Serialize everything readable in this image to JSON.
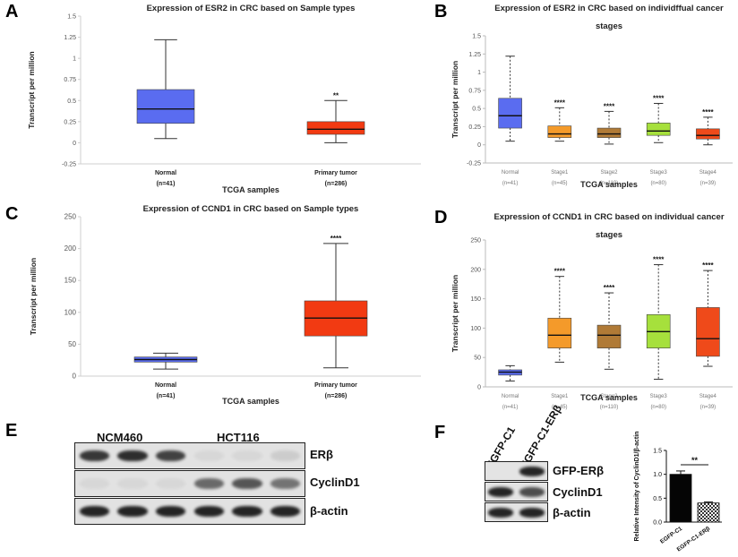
{
  "panel_labels": [
    "A",
    "B",
    "C",
    "D",
    "E",
    "F"
  ],
  "colors": {
    "normal_blue": "#5a6cf0",
    "tumor_red": "#f23a12",
    "stage1_orange": "#f49a2a",
    "stage2_brown": "#b07a36",
    "stage3_green": "#a6e03c",
    "stage4_red": "#ef4a1a"
  },
  "chart_data": [
    {
      "id": "A",
      "type": "box",
      "title": "Expression of ESR2 in CRC based on Sample types",
      "xlabel": "TCGA samples",
      "ylabel": "Transcript per million",
      "ylim": [
        -0.25,
        1.5
      ],
      "yticks": [
        "-0.25",
        "0",
        "0.25",
        "0.5",
        "0.75",
        "1",
        "1.25",
        "1.5"
      ],
      "categories": [
        "Normal",
        "Primary tumor"
      ],
      "counts": [
        "(n=41)",
        "(n=286)"
      ],
      "boxes": [
        {
          "min": 0.05,
          "q1": 0.23,
          "median": 0.4,
          "q3": 0.63,
          "max": 1.22,
          "color": "#5a6cf0",
          "sig": ""
        },
        {
          "min": 0.0,
          "q1": 0.1,
          "median": 0.16,
          "q3": 0.25,
          "max": 0.5,
          "color": "#f23a12",
          "sig": "**"
        }
      ]
    },
    {
      "id": "B",
      "type": "box",
      "title": "Expression of ESR2 in CRC based on individffual cancer",
      "title2": "stages",
      "xlabel": "TCGA samples",
      "ylabel": "Transcript per million",
      "ylim": [
        -0.25,
        1.5
      ],
      "yticks": [
        "-0.25",
        "0",
        "0.25",
        "0.5",
        "0.75",
        "1",
        "1.25",
        "1.5"
      ],
      "categories": [
        "Normal",
        "Stage1",
        "Stage2",
        "Stage3",
        "Stage4"
      ],
      "counts": [
        "(n=41)",
        "(n=45)",
        "(n=110)",
        "(n=80)",
        "(n=39)"
      ],
      "boxes": [
        {
          "min": 0.05,
          "q1": 0.23,
          "median": 0.4,
          "q3": 0.64,
          "max": 1.22,
          "color": "#5a6cf0",
          "sig": ""
        },
        {
          "min": 0.05,
          "q1": 0.1,
          "median": 0.15,
          "q3": 0.26,
          "max": 0.51,
          "color": "#f49a2a",
          "sig": "****"
        },
        {
          "min": 0.01,
          "q1": 0.1,
          "median": 0.15,
          "q3": 0.23,
          "max": 0.46,
          "color": "#b07a36",
          "sig": "****"
        },
        {
          "min": 0.03,
          "q1": 0.13,
          "median": 0.19,
          "q3": 0.3,
          "max": 0.57,
          "color": "#a6e03c",
          "sig": "****"
        },
        {
          "min": 0.0,
          "q1": 0.08,
          "median": 0.13,
          "q3": 0.22,
          "max": 0.38,
          "color": "#ef4a1a",
          "sig": "****"
        }
      ]
    },
    {
      "id": "C",
      "type": "box",
      "title": "Expression of CCND1 in CRC based on Sample types",
      "xlabel": "TCGA samples",
      "ylabel": "Transcript per million",
      "ylim": [
        0,
        250
      ],
      "yticks": [
        "0",
        "50",
        "100",
        "150",
        "200",
        "250"
      ],
      "categories": [
        "Normal",
        "Primary tumor"
      ],
      "counts": [
        "(n=41)",
        "(n=286)"
      ],
      "boxes": [
        {
          "min": 11,
          "q1": 22,
          "median": 26,
          "q3": 30,
          "max": 36,
          "color": "#5a6cf0",
          "sig": ""
        },
        {
          "min": 13,
          "q1": 63,
          "median": 91,
          "q3": 118,
          "max": 208,
          "color": "#f23a12",
          "sig": "****"
        }
      ]
    },
    {
      "id": "D",
      "type": "box",
      "title": "Expression of CCND1 in CRC based on individual cancer",
      "title2": "stages",
      "xlabel": "TCGA samples",
      "ylabel": "Transcript per million",
      "ylim": [
        0,
        250
      ],
      "yticks": [
        "0",
        "50",
        "100",
        "150",
        "200",
        "250"
      ],
      "categories": [
        "Normal",
        "Stage1",
        "Stage2",
        "Stage3",
        "Stage4"
      ],
      "counts": [
        "(n=41)",
        "(n=45)",
        "(n=110)",
        "(n=80)",
        "(n=39)"
      ],
      "boxes": [
        {
          "min": 10,
          "q1": 20,
          "median": 25,
          "q3": 29,
          "max": 36,
          "color": "#5a6cf0",
          "sig": ""
        },
        {
          "min": 42,
          "q1": 66,
          "median": 88,
          "q3": 117,
          "max": 188,
          "color": "#f49a2a",
          "sig": "****"
        },
        {
          "min": 30,
          "q1": 66,
          "median": 88,
          "q3": 105,
          "max": 160,
          "color": "#b07a36",
          "sig": "****"
        },
        {
          "min": 13,
          "q1": 66,
          "median": 94,
          "q3": 123,
          "max": 208,
          "color": "#a6e03c",
          "sig": "****"
        },
        {
          "min": 35,
          "q1": 52,
          "median": 82,
          "q3": 135,
          "max": 198,
          "color": "#ef4a1a",
          "sig": "****"
        }
      ]
    },
    {
      "id": "F-bar",
      "type": "bar",
      "ylabel": "Relative Intensity of CyclinD1/β-actin",
      "ylim": [
        0,
        1.5
      ],
      "yticks": [
        "0.0",
        "0.5",
        "1.0",
        "1.5"
      ],
      "categories": [
        "EGFP-C1",
        "EGFP-C1-ERβ"
      ],
      "values": [
        1.0,
        0.4
      ],
      "errors": [
        0.07,
        0.02
      ],
      "sig": "**"
    }
  ],
  "blot_E": {
    "groups": [
      "NCM460",
      "HCT116"
    ],
    "rows": [
      {
        "label": "ERβ",
        "intensities": [
          0.85,
          0.9,
          0.8,
          0.05,
          0.05,
          0.1
        ]
      },
      {
        "label": "CyclinD1",
        "intensities": [
          0.05,
          0.05,
          0.05,
          0.6,
          0.7,
          0.55
        ]
      },
      {
        "label": "β-actin",
        "intensities": [
          0.95,
          0.95,
          0.95,
          0.95,
          0.95,
          0.95
        ]
      }
    ]
  },
  "blot_F": {
    "lanes": [
      "EGFP-C1",
      "EGFP-C1-ERβ"
    ],
    "rows": [
      {
        "label": "GFP-ERβ",
        "intensities": [
          0.0,
          0.95
        ]
      },
      {
        "label": "CyclinD1",
        "intensities": [
          0.95,
          0.75
        ]
      },
      {
        "label": "β-actin",
        "intensities": [
          0.95,
          0.95
        ]
      }
    ]
  }
}
